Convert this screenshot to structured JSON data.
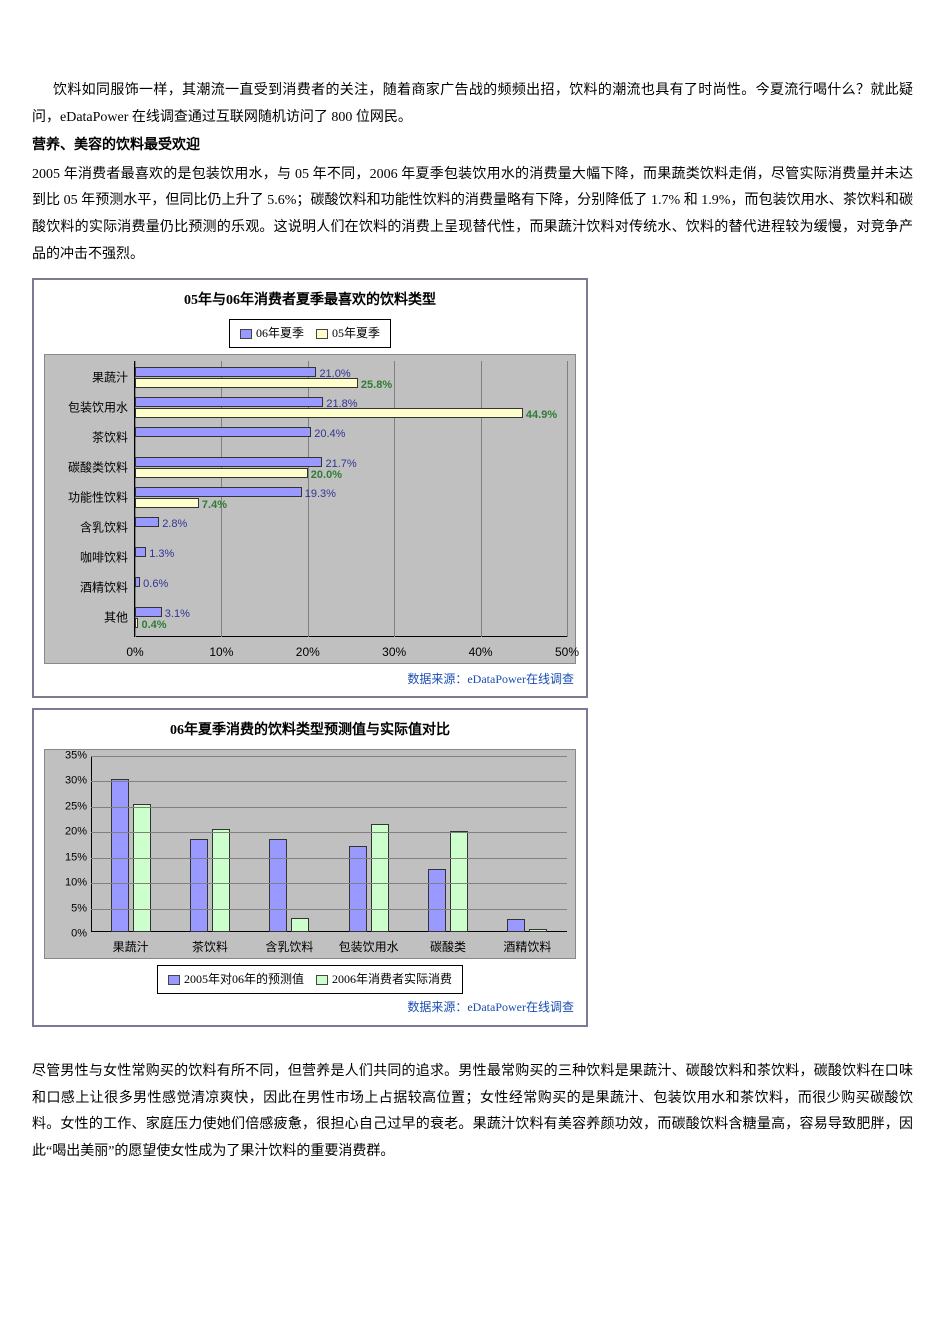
{
  "text": {
    "p1": "饮料如同服饰一样，其潮流一直受到消费者的关注，随着商家广告战的频频出招，饮料的潮流也具有了时尚性。今夏流行喝什么？就此疑问，eDataPower 在线调查通过互联网随机访问了 800 位网民。",
    "h1": "营养、美容的饮料最受欢迎",
    "p2": "2005 年消费者最喜欢的是包装饮用水，与 05 年不同，2006 年夏季包装饮用水的消费量大幅下降，而果蔬类饮料走俏，尽管实际消费量并未达到比 05 年预测水平，但同比仍上升了 5.6%；碳酸饮料和功能性饮料的消费量略有下降，分别降低了 1.7% 和 1.9%，而包装饮用水、茶饮料和碳酸饮料的实际消费量仍比预测的乐观。这说明人们在饮料的消费上呈现替代性，而果蔬汁饮料对传统水、饮料的替代进程较为缓慢，对竞争产品的冲击不强烈。",
    "p3": "尽管男性与女性常购买的饮料有所不同，但营养是人们共同的追求。男性最常购买的三种饮料是果蔬汁、碳酸饮料和茶饮料，碳酸饮料在口味和口感上让很多男性感觉清凉爽快，因此在男性市场上占据较高位置；女性经常购买的是果蔬汁、包装饮用水和茶饮料，而很少购买碳酸饮料。女性的工作、家庭压力使她们倍感疲惫，很担心自己过早的衰老。果蔬汁饮料有美容养颜功效，而碳酸饮料含糖量高，容易导致肥胖，因此“喝出美丽”的愿望使女性成为了果汁饮料的重要消费群。",
    "source": "数据来源：eDataPower在线调查"
  },
  "chart1": {
    "title": "05年与06年消费者夏季最喜欢的饮料类型",
    "legend": {
      "s06": "06年夏季",
      "s05": "05年夏季"
    },
    "colors": {
      "s06": "#9999ff",
      "s05": "#ffffcc",
      "label06": "#333399",
      "label05": "#2e7d32",
      "plot_bg": "#c0c0c0",
      "grid": "#808080"
    },
    "x_max": 50,
    "x_ticks": [
      0,
      10,
      20,
      30,
      40,
      50
    ],
    "x_tick_labels": [
      "0%",
      "10%",
      "20%",
      "30%",
      "40%",
      "50%"
    ],
    "categories": [
      "果蔬汁",
      "包装饮用水",
      "茶饮料",
      "碳酸类饮料",
      "功能性饮料",
      "含乳饮料",
      "咖啡饮料",
      "酒精饮料",
      "其他"
    ],
    "values06": [
      21.0,
      21.8,
      20.4,
      21.7,
      19.3,
      2.8,
      1.3,
      0.6,
      3.1
    ],
    "values05": [
      25.8,
      44.9,
      null,
      20.0,
      7.4,
      null,
      null,
      null,
      0.4
    ],
    "labels06": [
      "21.0%",
      "21.8%",
      "20.4%",
      "21.7%",
      "19.3%",
      "2.8%",
      "1.3%",
      "0.6%",
      "3.1%"
    ],
    "labels05": [
      "25.8%",
      "44.9%",
      "",
      "20.0%",
      "7.4%",
      "",
      "",
      "",
      "0.4%"
    ]
  },
  "chart2": {
    "title": "06年夏季消费的饮料类型预测值与实际值对比",
    "legend": {
      "sA": "2005年对06年的预测值",
      "sB": "2006年消费者实际消费"
    },
    "colors": {
      "sA": "#9999ff",
      "sB": "#ccffcc",
      "plot_bg": "#c0c0c0",
      "grid": "#808080"
    },
    "y_max": 35,
    "y_ticks": [
      0,
      5,
      10,
      15,
      20,
      25,
      30,
      35
    ],
    "y_tick_labels": [
      "0%",
      "5%",
      "10%",
      "15%",
      "20%",
      "25%",
      "30%",
      "35%"
    ],
    "categories": [
      "果蔬汁",
      "茶饮料",
      "含乳饮料",
      "包装饮用水",
      "碳酸类",
      "酒精饮料"
    ],
    "valuesA": [
      30.5,
      18.5,
      18.5,
      17.0,
      12.5,
      2.6
    ],
    "valuesB": [
      25.5,
      20.5,
      2.8,
      21.5,
      20.0,
      0.6
    ]
  }
}
